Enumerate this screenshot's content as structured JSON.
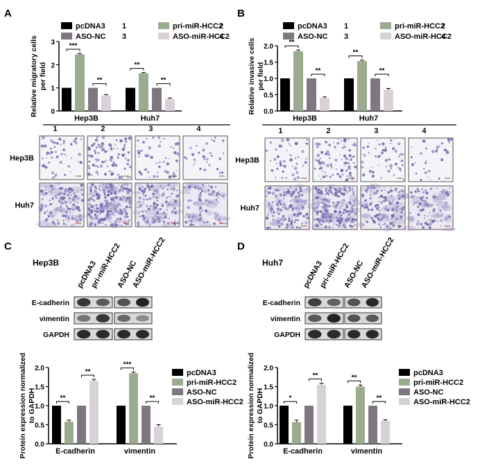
{
  "panels": {
    "A": {
      "letter": "A",
      "ylabel_lines": [
        "Relative migratory cells",
        "per field"
      ],
      "legend": [
        {
          "label": "pcDNA3",
          "num": "1",
          "color": "#000000"
        },
        {
          "label": "pri-miR-HCC2",
          "num": "2",
          "color": "#9bab8f"
        },
        {
          "label": "ASO-NC",
          "num": "3",
          "color": "#7f7780"
        },
        {
          "label": "ASO-miR-HCC2",
          "num": "4",
          "color": "#d8d2d8"
        }
      ],
      "group_labels": [
        "Hep3B",
        "Huh7"
      ],
      "sig_labels": [
        "***",
        "**",
        "**",
        "**"
      ],
      "ticks": [
        "0",
        "1",
        "2",
        "3"
      ],
      "micro_col_labels": [
        "1",
        "2",
        "3",
        "4"
      ],
      "micro_row_labels": [
        "Hep3B",
        "Huh7"
      ]
    },
    "B": {
      "letter": "B",
      "ylabel_lines": [
        "Relative invasive cells",
        "per field"
      ],
      "legend": [
        {
          "label": "pcDNA3",
          "num": "1",
          "color": "#000000"
        },
        {
          "label": "pri-miR-HCC2",
          "num": "2",
          "color": "#9bab8f"
        },
        {
          "label": "ASO-NC",
          "num": "3",
          "color": "#7f7780"
        },
        {
          "label": "ASO-miR-HCC2",
          "num": "4",
          "color": "#d8d2d8"
        }
      ],
      "group_labels": [
        "Hep3B",
        "Huh7"
      ],
      "sig_labels": [
        "**",
        "**",
        "**",
        "**"
      ],
      "ticks": [
        "0.0",
        "0.5",
        "1.0",
        "1.5",
        "2.0"
      ],
      "micro_col_labels": [
        "1",
        "2",
        "3",
        "4"
      ],
      "micro_row_labels": [
        "Hep3B",
        "Huh7"
      ]
    },
    "C": {
      "letter": "C",
      "cell_line": "Hep3B",
      "lane_labels": [
        "pcDNA3",
        "pri-miR-HCC2",
        "ASO-NC",
        "ASO-miR-HCC2"
      ],
      "blot_rows": [
        "E-cadherin",
        "vimentin",
        "GAPDH"
      ],
      "ylabel_lines": [
        "Protein expression normalized",
        "to GAPDH"
      ],
      "legend": [
        {
          "label": "pcDNA3",
          "color": "#000000"
        },
        {
          "label": "pri-miR-HCC2",
          "color": "#9bab8f"
        },
        {
          "label": "ASO-NC",
          "color": "#7f7780"
        },
        {
          "label": "ASO-miR-HCC2",
          "color": "#d8d2d8"
        }
      ],
      "group_labels": [
        "E-cadherin",
        "vimentin"
      ],
      "sig_labels": [
        "**",
        "**",
        "***",
        "**"
      ],
      "ticks": [
        "0.0",
        "0.5",
        "1.0",
        "1.5",
        "2.0"
      ]
    },
    "D": {
      "letter": "D",
      "cell_line": "Huh7",
      "lane_labels": [
        "pcDNA3",
        "pri-miR-HCC2",
        "ASO-NC",
        "ASO-miR-HCC2"
      ],
      "blot_rows": [
        "E-cadherin",
        "vimentin",
        "GAPDH"
      ],
      "ylabel_lines": [
        "Protein expression normalized",
        "to GAPDH"
      ],
      "legend": [
        {
          "label": "pcDNA3",
          "color": "#000000"
        },
        {
          "label": "pri-miR-HCC2",
          "color": "#9bab8f"
        },
        {
          "label": "ASO-NC",
          "color": "#7f7780"
        },
        {
          "label": "ASO-miR-HCC2",
          "color": "#d8d2d8"
        }
      ],
      "group_labels": [
        "E-cadherin",
        "vimentin"
      ],
      "sig_labels": [
        "*",
        "**",
        "**",
        "**"
      ],
      "ticks": [
        "0.0",
        "0.5",
        "1.0",
        "1.5",
        "2.0"
      ]
    }
  },
  "chart_data": [
    {
      "type": "bar",
      "panel": "A",
      "categories": [
        "Hep3B",
        "Huh7"
      ],
      "series": [
        {
          "name": "pcDNA3",
          "values": [
            1.0,
            1.0
          ],
          "errors": [
            0.0,
            0.0
          ]
        },
        {
          "name": "pri-miR-HCC2",
          "values": [
            2.45,
            1.63
          ],
          "errors": [
            0.04,
            0.03
          ]
        },
        {
          "name": "ASO-NC",
          "values": [
            1.0,
            1.0
          ],
          "errors": [
            0.0,
            0.0
          ]
        },
        {
          "name": "ASO-miR-HCC2",
          "values": [
            0.68,
            0.52
          ],
          "errors": [
            0.03,
            0.04
          ]
        }
      ],
      "ylim": [
        0,
        3
      ],
      "ylabel": "Relative migratory cells per field"
    },
    {
      "type": "bar",
      "panel": "B",
      "categories": [
        "Hep3B",
        "Huh7"
      ],
      "series": [
        {
          "name": "pcDNA3",
          "values": [
            1.0,
            1.0
          ],
          "errors": [
            0.0,
            0.0
          ]
        },
        {
          "name": "pri-miR-HCC2",
          "values": [
            1.83,
            1.53
          ],
          "errors": [
            0.04,
            0.03
          ]
        },
        {
          "name": "ASO-NC",
          "values": [
            1.0,
            1.0
          ],
          "errors": [
            0.0,
            0.0
          ]
        },
        {
          "name": "ASO-miR-HCC2",
          "values": [
            0.4,
            0.65
          ],
          "errors": [
            0.03,
            0.04
          ]
        }
      ],
      "ylim": [
        0,
        2
      ],
      "ylabel": "Relative invasive cells per field"
    },
    {
      "type": "bar",
      "panel": "C",
      "categories": [
        "E-cadherin",
        "vimentin"
      ],
      "series": [
        {
          "name": "pcDNA3",
          "values": [
            1.0,
            1.0
          ],
          "errors": [
            0.0,
            0.0
          ]
        },
        {
          "name": "pri-miR-HCC2",
          "values": [
            0.58,
            1.85
          ],
          "errors": [
            0.04,
            0.03
          ]
        },
        {
          "name": "ASO-NC",
          "values": [
            1.0,
            1.0
          ],
          "errors": [
            0.0,
            0.0
          ]
        },
        {
          "name": "ASO-miR-HCC2",
          "values": [
            1.65,
            0.45
          ],
          "errors": [
            0.04,
            0.05
          ]
        }
      ],
      "ylim": [
        0,
        2
      ],
      "ylabel": "Protein expression normalized to GAPDH"
    },
    {
      "type": "bar",
      "panel": "D",
      "categories": [
        "E-cadherin",
        "vimentin"
      ],
      "series": [
        {
          "name": "pcDNA3",
          "values": [
            1.0,
            1.0
          ],
          "errors": [
            0.0,
            0.0
          ]
        },
        {
          "name": "pri-miR-HCC2",
          "values": [
            0.57,
            1.5
          ],
          "errors": [
            0.05,
            0.04
          ]
        },
        {
          "name": "ASO-NC",
          "values": [
            1.0,
            1.0
          ],
          "errors": [
            0.0,
            0.0
          ]
        },
        {
          "name": "ASO-miR-HCC2",
          "values": [
            1.55,
            0.6
          ],
          "errors": [
            0.04,
            0.03
          ]
        }
      ],
      "ylim": [
        0,
        2
      ],
      "ylabel": "Protein expression normalized to GAPDH"
    }
  ]
}
